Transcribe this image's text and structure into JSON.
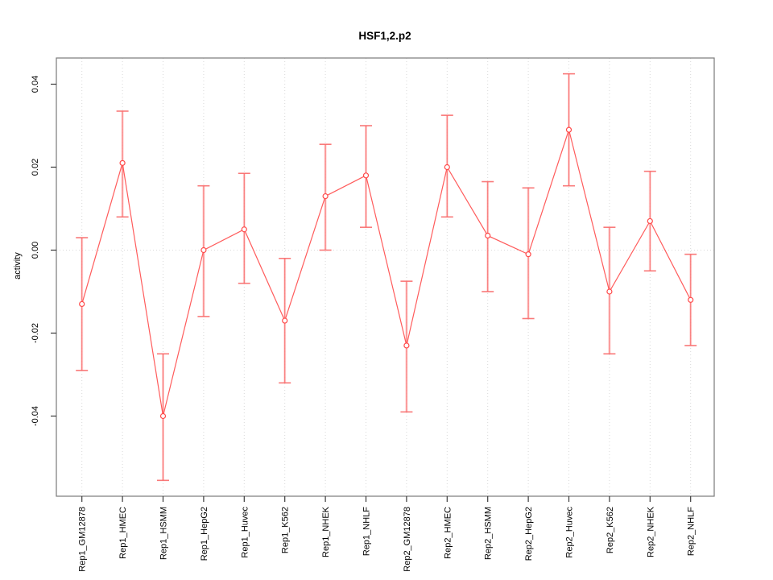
{
  "chart_data": {
    "type": "line",
    "title": "HSF1,2.p2",
    "xlabel": "",
    "ylabel": "activity",
    "ylim": [
      -0.059,
      0.046
    ],
    "yticks": [
      0.04,
      0.02,
      0.0,
      -0.02,
      -0.04
    ],
    "ytick_labels": [
      "0.04",
      "0.02",
      "0.00",
      "-0.02",
      "-0.04"
    ],
    "legend": "none",
    "grid": "dotted vertical line at each category; dotted horizontal line at y=0",
    "marker": "open-circle",
    "categories": [
      "Rep1_GM12878",
      "Rep1_HMEC",
      "Rep1_HSMM",
      "Rep1_HepG2",
      "Rep1_Huvec",
      "Rep1_K562",
      "Rep1_NHEK",
      "Rep1_NHLF",
      "Rep2_GM12878",
      "Rep2_HMEC",
      "Rep2_HSMM",
      "Rep2_HepG2",
      "Rep2_Huvec",
      "Rep2_K562",
      "Rep2_NHEK",
      "Rep2_NHLF"
    ],
    "series": [
      {
        "name": "activity",
        "values": [
          -0.013,
          0.021,
          -0.04,
          0.0,
          0.005,
          -0.017,
          0.013,
          0.018,
          -0.023,
          0.02,
          0.0035,
          -0.001,
          0.029,
          -0.01,
          0.007,
          -0.012
        ],
        "error_upper": [
          0.003,
          0.0335,
          -0.025,
          0.0155,
          0.0185,
          -0.002,
          0.0255,
          0.03,
          -0.0075,
          0.0325,
          0.0165,
          0.015,
          0.0425,
          0.0055,
          0.019,
          -0.001
        ],
        "error_lower": [
          -0.029,
          0.008,
          -0.0555,
          -0.016,
          -0.008,
          -0.032,
          0.0,
          0.0055,
          -0.039,
          0.008,
          -0.01,
          -0.0165,
          0.0155,
          -0.025,
          -0.005,
          -0.023
        ]
      }
    ],
    "colors": {
      "series_line": "#ff4a4a",
      "error_bar": "#f96b6b",
      "error_bar_halo": "#ffb3b3",
      "grid_line": "#d9d9d9",
      "plot_border": "#7a7a7a",
      "tick_mark": "#3a3a3a",
      "text": "#000000",
      "background": "#ffffff"
    }
  }
}
